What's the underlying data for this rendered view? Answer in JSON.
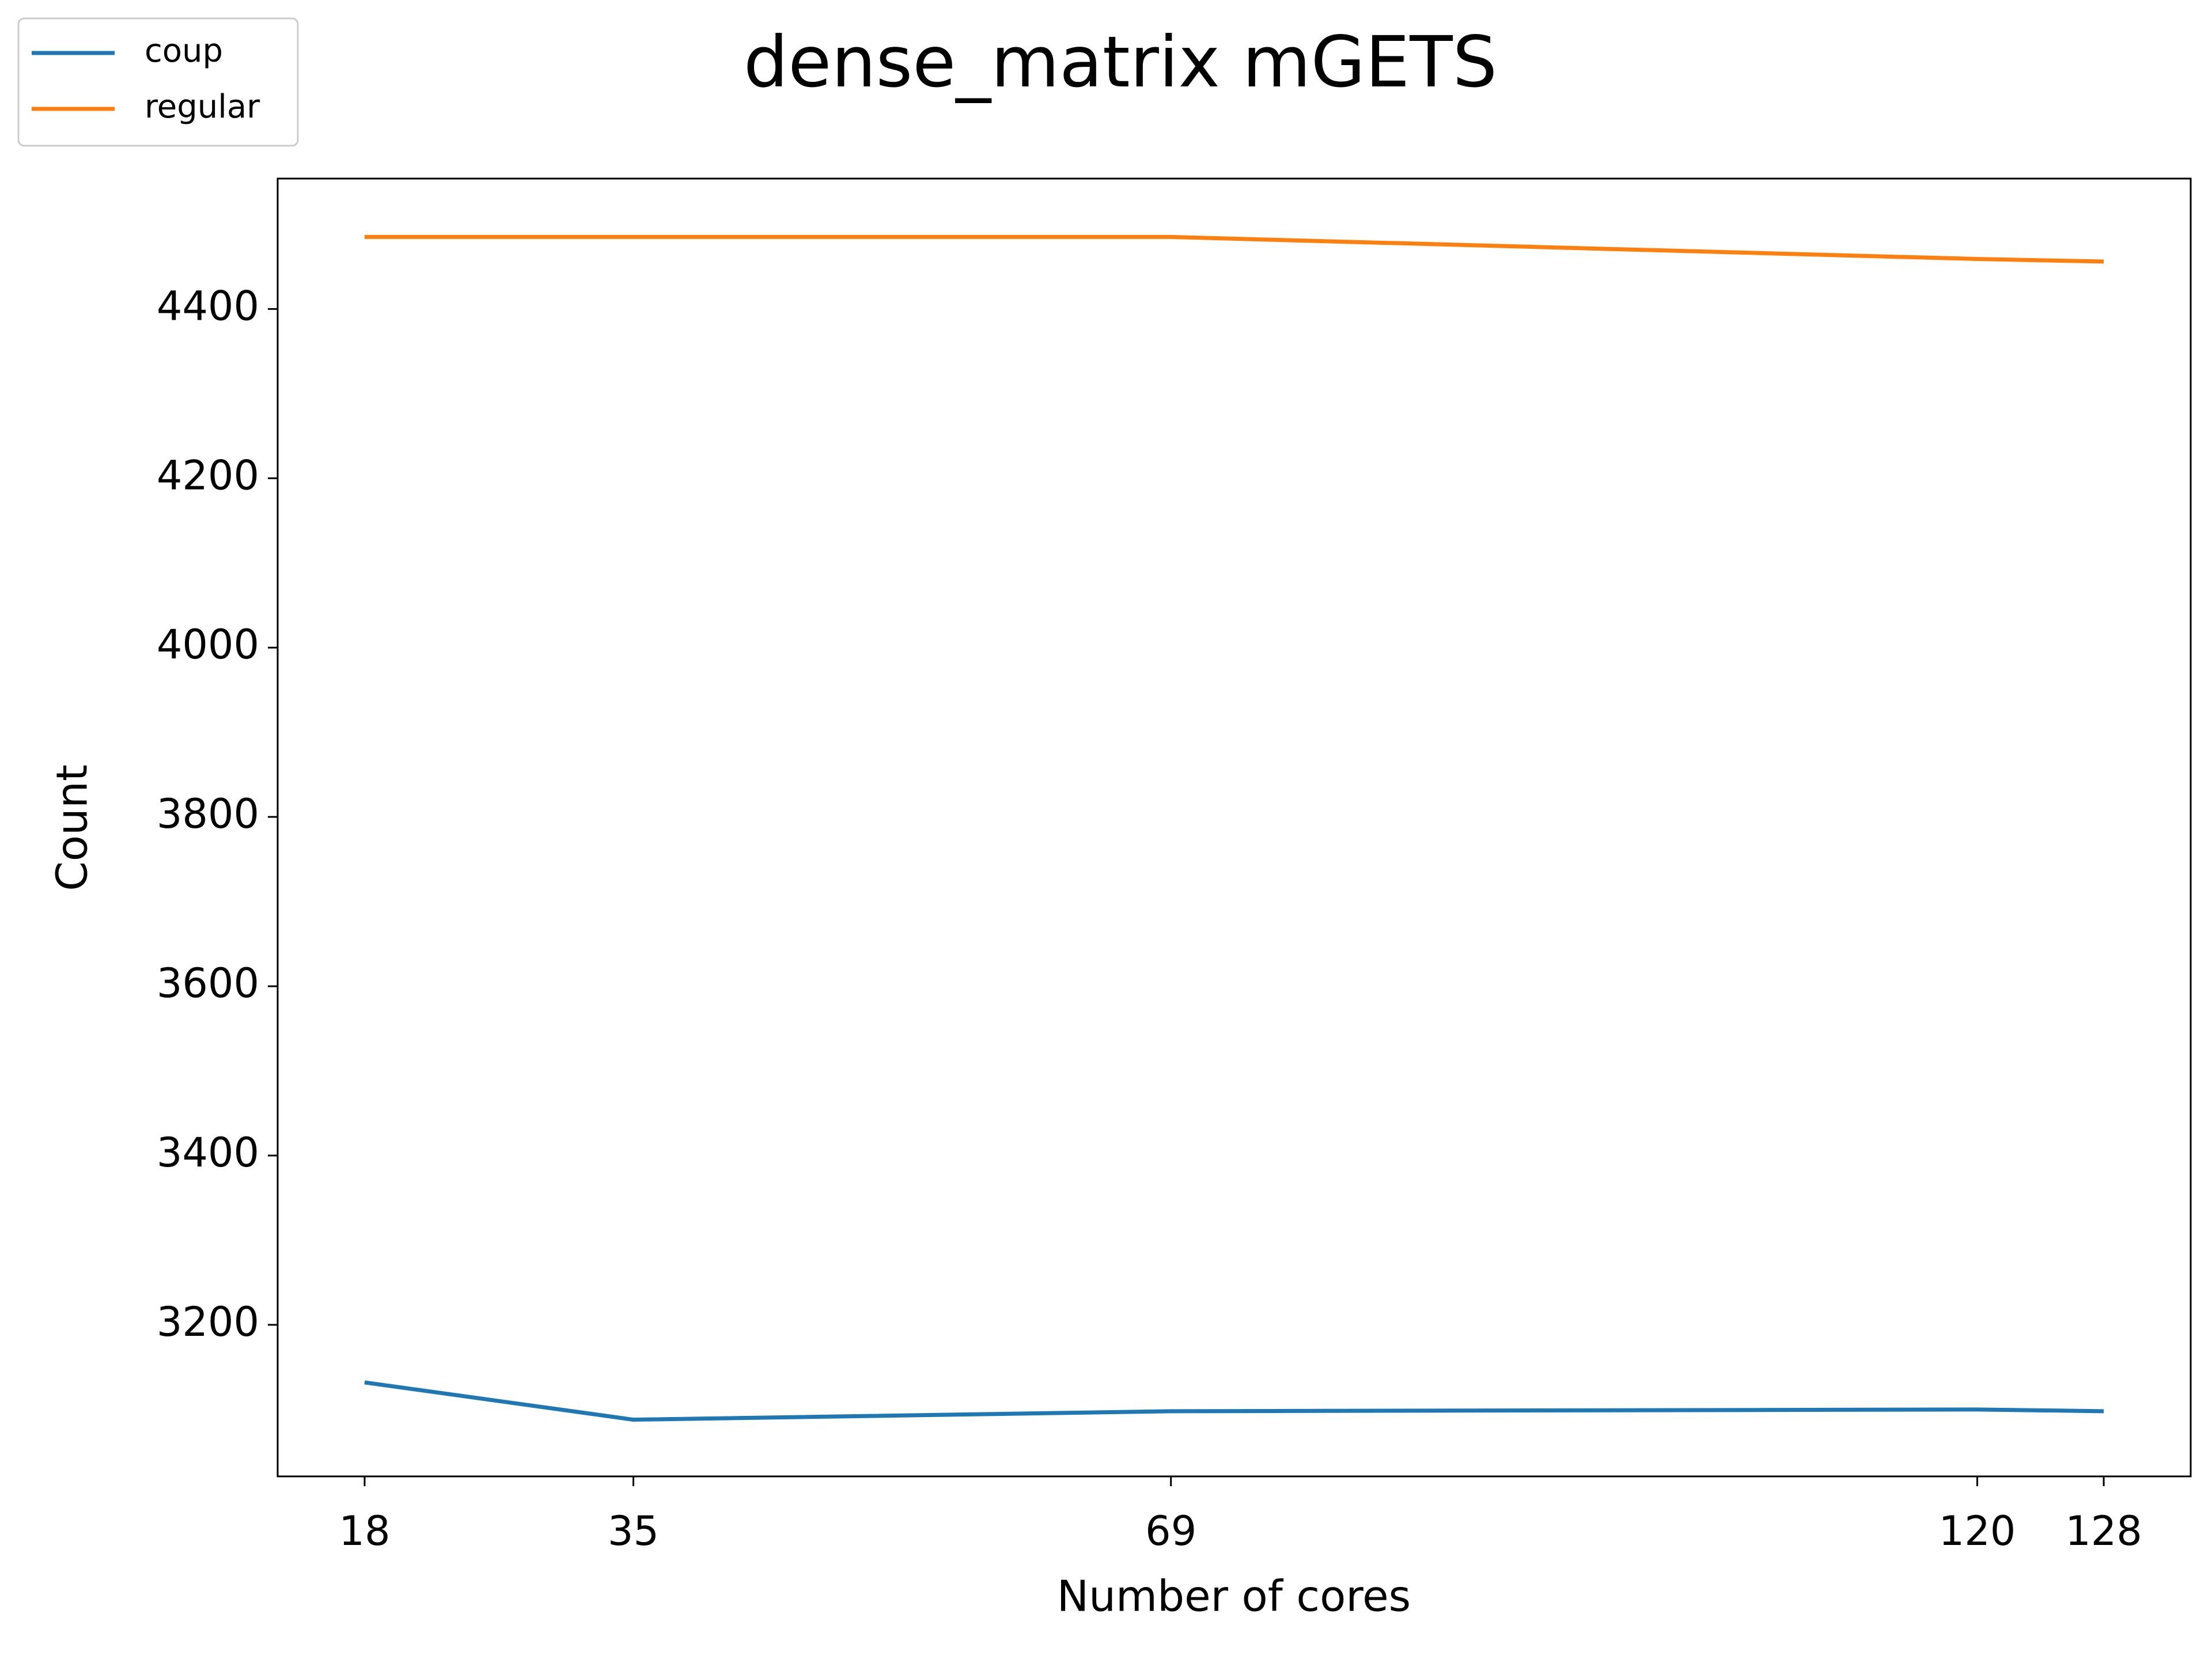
{
  "chart_data": {
    "type": "line",
    "title": "dense_matrix mGETS",
    "x_label": "Number of cores",
    "y_label": "Count",
    "x": [
      18,
      35,
      69,
      120,
      128
    ],
    "series": [
      {
        "name": "coup",
        "color": "#1f77b4",
        "values": [
          3132,
          3088,
          3098,
          3100,
          3098
        ]
      },
      {
        "name": "regular",
        "color": "#ff7f0e",
        "values": [
          4485,
          4485,
          4485,
          4459,
          4456
        ]
      }
    ],
    "xlim": [
      12.5,
      133.5
    ],
    "ylim": [
      3021,
      4554
    ],
    "xticks": [
      18,
      35,
      69,
      120,
      128
    ],
    "yticks": [
      3200,
      3400,
      3600,
      3800,
      4000,
      4200,
      4400
    ],
    "grid": false,
    "legend": "upper left"
  }
}
